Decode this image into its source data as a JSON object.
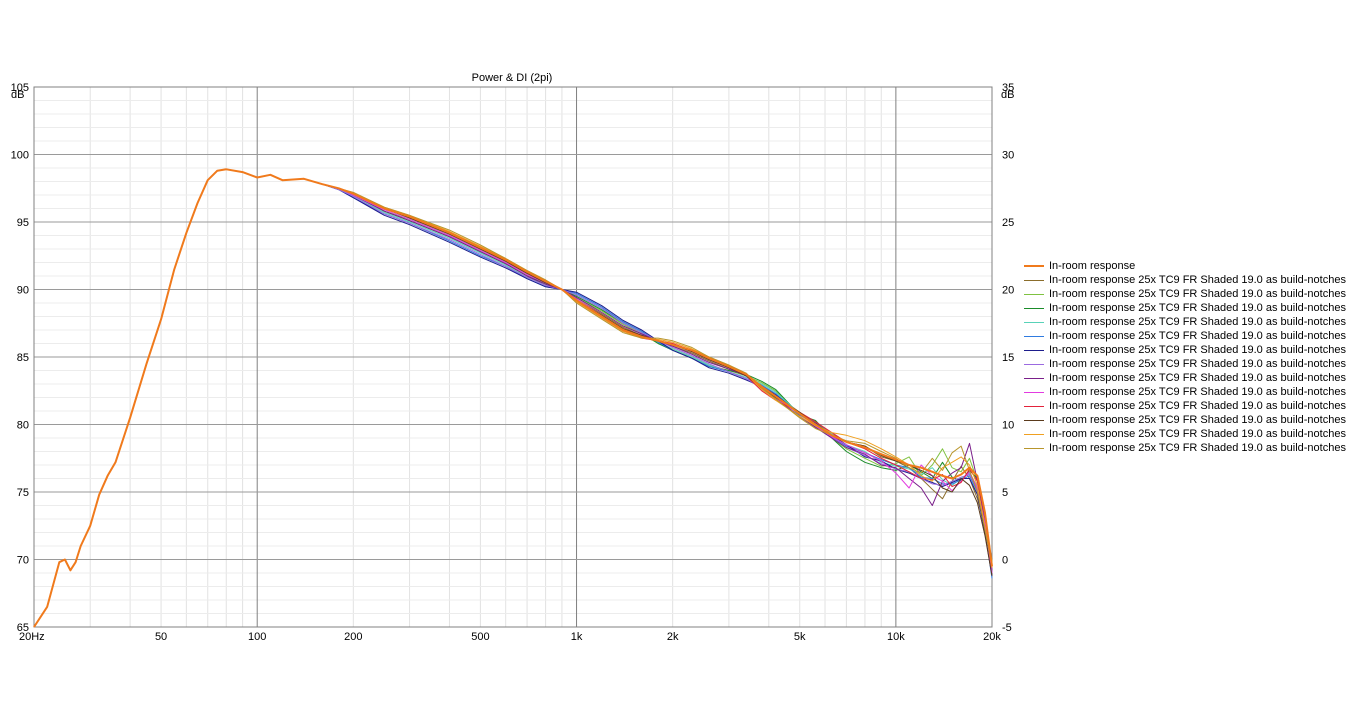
{
  "chart_data": {
    "type": "line",
    "title": "Power & DI (2pi)",
    "xlabel": "",
    "ylabel": "dB",
    "y2label": "dB",
    "x_scale": "log",
    "xlim": [
      20,
      20000
    ],
    "ylim": [
      65,
      105
    ],
    "y2lim": [
      -5,
      35
    ],
    "x_ticks": [
      {
        "value": 20,
        "label": "20Hz"
      },
      {
        "value": 50,
        "label": "50"
      },
      {
        "value": 100,
        "label": "100"
      },
      {
        "value": 200,
        "label": "200"
      },
      {
        "value": 500,
        "label": "500"
      },
      {
        "value": 1000,
        "label": "1k"
      },
      {
        "value": 2000,
        "label": "2k"
      },
      {
        "value": 5000,
        "label": "5k"
      },
      {
        "value": 10000,
        "label": "10k"
      },
      {
        "value": 20000,
        "label": "20k"
      }
    ],
    "y_ticks": [
      105,
      100,
      95,
      90,
      85,
      80,
      75,
      70,
      65
    ],
    "y2_ticks": [
      35,
      30,
      25,
      20,
      15,
      10,
      5,
      0,
      -5
    ],
    "grid": true,
    "legend_position": "right",
    "x": [
      20,
      22,
      24,
      25,
      26,
      27,
      28,
      30,
      32,
      34,
      36,
      40,
      45,
      50,
      55,
      60,
      65,
      70,
      75,
      80,
      90,
      100,
      110,
      120,
      140,
      160,
      180,
      200,
      250,
      300,
      400,
      500,
      600,
      700,
      800,
      900,
      1000,
      1200,
      1400,
      1600,
      1800,
      2000,
      2300,
      2600,
      3000,
      3400,
      3800,
      4200,
      5000,
      5600,
      6300,
      7000,
      8000,
      9000,
      10000,
      11000,
      12000,
      13000,
      14000,
      15000,
      16000,
      17000,
      18000,
      19000,
      20000
    ],
    "series": [
      {
        "name": "In-room response",
        "color": "#f07a1c",
        "values": [
          65.0,
          66.5,
          69.8,
          70.0,
          69.2,
          69.8,
          71.0,
          72.5,
          74.8,
          76.2,
          77.2,
          80.5,
          84.5,
          87.8,
          91.5,
          94.2,
          96.4,
          98.1,
          98.8,
          98.9,
          98.7,
          98.3,
          98.5,
          98.1,
          98.2,
          97.8,
          97.5,
          97.1,
          96.0,
          95.4,
          94.2,
          93.1,
          92.2,
          91.3,
          90.6,
          90.0,
          89.2,
          88.0,
          87.0,
          86.5,
          86.2,
          85.9,
          85.5,
          84.9,
          84.3,
          83.7,
          82.8,
          82.1,
          80.8,
          80.0,
          79.2,
          78.7,
          78.3,
          77.8,
          77.4,
          77.0,
          76.8,
          76.5,
          76.2,
          76.0,
          76.3,
          76.8,
          76.2,
          73.5,
          69.5
        ]
      },
      {
        "name": "In-room response 25x TC9 FR Shaded 19.0 as build-notches",
        "color": "#8b6d2b",
        "values": [
          65.0,
          66.5,
          69.8,
          70.0,
          69.2,
          69.8,
          71.0,
          72.5,
          74.8,
          76.2,
          77.2,
          80.5,
          84.5,
          87.8,
          91.5,
          94.2,
          96.4,
          98.1,
          98.8,
          98.9,
          98.7,
          98.3,
          98.5,
          98.1,
          98.2,
          97.8,
          97.5,
          97.1,
          96.0,
          95.4,
          94.2,
          93.0,
          92.1,
          91.2,
          90.5,
          90.0,
          89.3,
          88.2,
          87.2,
          86.6,
          86.1,
          85.8,
          85.3,
          84.7,
          84.1,
          83.6,
          82.9,
          82.2,
          80.9,
          80.2,
          79.3,
          78.7,
          78.4,
          77.6,
          77.3,
          76.8,
          76.0,
          75.2,
          74.5,
          75.8,
          76.9,
          76.0,
          74.5,
          72.5,
          70.0
        ]
      },
      {
        "name": "In-room response 25x TC9 FR Shaded 19.0 as build-notches",
        "color": "#7fc241",
        "values": [
          65.0,
          66.5,
          69.8,
          70.0,
          69.2,
          69.8,
          71.0,
          72.5,
          74.8,
          76.2,
          77.2,
          80.5,
          84.5,
          87.8,
          91.5,
          94.2,
          96.4,
          98.1,
          98.8,
          98.9,
          98.7,
          98.3,
          98.5,
          98.1,
          98.2,
          97.8,
          97.5,
          97.0,
          95.8,
          95.2,
          94.0,
          92.9,
          92.0,
          91.1,
          90.4,
          90.0,
          89.4,
          88.4,
          87.4,
          86.7,
          86.0,
          85.6,
          85.0,
          84.4,
          84.0,
          83.6,
          83.1,
          82.5,
          80.6,
          79.8,
          79.0,
          78.2,
          77.5,
          76.9,
          77.1,
          77.6,
          76.2,
          77.0,
          78.2,
          76.8,
          76.5,
          77.5,
          75.8,
          73.0,
          69.8
        ]
      },
      {
        "name": "In-room response 25x TC9 FR Shaded 19.0 as build-notches",
        "color": "#1a8c2a",
        "values": [
          65.0,
          66.5,
          69.8,
          70.0,
          69.2,
          69.8,
          71.0,
          72.5,
          74.8,
          76.2,
          77.2,
          80.5,
          84.5,
          87.8,
          91.5,
          94.2,
          96.4,
          98.1,
          98.8,
          98.9,
          98.7,
          98.3,
          98.5,
          98.1,
          98.2,
          97.8,
          97.5,
          97.0,
          95.8,
          95.1,
          93.9,
          92.8,
          91.9,
          91.0,
          90.3,
          90.0,
          89.5,
          88.5,
          87.5,
          86.8,
          86.0,
          85.5,
          84.9,
          84.3,
          84.0,
          83.7,
          83.2,
          82.6,
          80.7,
          80.3,
          79.0,
          78.0,
          77.2,
          76.8,
          76.6,
          77.0,
          76.5,
          76.0,
          77.2,
          76.1,
          75.8,
          76.6,
          76.0,
          73.4,
          69.6
        ]
      },
      {
        "name": "In-room response 25x TC9 FR Shaded 19.0 as build-notches",
        "color": "#58d2b8",
        "values": [
          65.0,
          66.5,
          69.8,
          70.0,
          69.2,
          69.8,
          71.0,
          72.5,
          74.8,
          76.2,
          77.2,
          80.5,
          84.5,
          87.8,
          91.5,
          94.2,
          96.4,
          98.1,
          98.8,
          98.9,
          98.7,
          98.3,
          98.5,
          98.1,
          98.2,
          97.8,
          97.5,
          96.9,
          95.7,
          95.0,
          93.8,
          92.7,
          91.8,
          90.9,
          90.3,
          90.0,
          89.6,
          88.6,
          87.6,
          86.9,
          86.1,
          85.6,
          85.0,
          84.4,
          83.9,
          83.5,
          83.0,
          82.4,
          80.8,
          80.1,
          79.3,
          78.5,
          78.0,
          77.2,
          76.9,
          76.7,
          76.3,
          76.8,
          75.9,
          75.5,
          76.0,
          76.4,
          75.4,
          72.8,
          69.2
        ]
      },
      {
        "name": "In-room response 25x TC9 FR Shaded 19.0 as build-notches",
        "color": "#2f7be0",
        "values": [
          65.0,
          66.5,
          69.8,
          70.0,
          69.2,
          69.8,
          71.0,
          72.5,
          74.8,
          76.2,
          77.2,
          80.5,
          84.5,
          87.8,
          91.5,
          94.2,
          96.4,
          98.1,
          98.8,
          98.9,
          98.7,
          98.3,
          98.5,
          98.1,
          98.2,
          97.8,
          97.4,
          96.8,
          95.6,
          94.9,
          93.6,
          92.5,
          91.7,
          90.8,
          90.2,
          90.0,
          89.7,
          88.7,
          87.6,
          86.9,
          86.1,
          85.5,
          84.9,
          84.3,
          83.9,
          83.4,
          82.9,
          82.3,
          80.7,
          80.0,
          79.1,
          78.4,
          77.9,
          77.4,
          77.0,
          76.8,
          76.1,
          76.0,
          75.6,
          75.6,
          75.9,
          76.2,
          75.0,
          72.2,
          68.6
        ]
      },
      {
        "name": "In-room response 25x TC9 FR Shaded 19.0 as build-notches",
        "color": "#1d1d8c",
        "values": [
          65.0,
          66.5,
          69.8,
          70.0,
          69.2,
          69.8,
          71.0,
          72.5,
          74.8,
          76.2,
          77.2,
          80.5,
          84.5,
          87.8,
          91.5,
          94.2,
          96.4,
          98.1,
          98.8,
          98.9,
          98.7,
          98.3,
          98.5,
          98.1,
          98.2,
          97.8,
          97.4,
          96.8,
          95.5,
          94.8,
          93.5,
          92.4,
          91.6,
          90.8,
          90.2,
          90.0,
          89.8,
          88.8,
          87.7,
          87.0,
          86.2,
          85.5,
          84.9,
          84.2,
          83.8,
          83.3,
          82.8,
          82.2,
          80.8,
          80.1,
          79.2,
          78.5,
          77.6,
          77.3,
          76.7,
          76.4,
          76.0,
          75.7,
          75.4,
          75.7,
          76.0,
          76.0,
          74.8,
          72.0,
          68.8
        ]
      },
      {
        "name": "In-room response 25x TC9 FR Shaded 19.0 as build-notches",
        "color": "#9b6ae0",
        "values": [
          65.0,
          66.5,
          69.8,
          70.0,
          69.2,
          69.8,
          71.0,
          72.5,
          74.8,
          76.2,
          77.2,
          80.5,
          84.5,
          87.8,
          91.5,
          94.2,
          96.4,
          98.1,
          98.8,
          98.9,
          98.7,
          98.3,
          98.5,
          98.1,
          98.2,
          97.8,
          97.4,
          96.9,
          95.6,
          94.9,
          93.7,
          92.6,
          91.7,
          90.9,
          90.3,
          90.0,
          89.6,
          88.6,
          87.5,
          86.8,
          86.2,
          85.7,
          85.1,
          84.5,
          83.9,
          83.4,
          82.7,
          82.0,
          80.6,
          79.8,
          79.0,
          78.3,
          77.7,
          77.1,
          76.7,
          76.5,
          76.0,
          75.6,
          75.5,
          75.8,
          76.1,
          76.3,
          75.2,
          72.6,
          69.0
        ]
      },
      {
        "name": "In-room response 25x TC9 FR Shaded 19.0 as build-notches",
        "color": "#7a1f8a",
        "values": [
          65.0,
          66.5,
          69.8,
          70.0,
          69.2,
          69.8,
          71.0,
          72.5,
          74.8,
          76.2,
          77.2,
          80.5,
          84.5,
          87.8,
          91.5,
          94.2,
          96.4,
          98.1,
          98.8,
          98.9,
          98.7,
          98.3,
          98.5,
          98.1,
          98.2,
          97.8,
          97.5,
          97.0,
          95.8,
          95.1,
          93.9,
          92.8,
          91.9,
          91.0,
          90.4,
          90.0,
          89.4,
          88.3,
          87.3,
          86.7,
          86.2,
          85.8,
          85.2,
          84.6,
          84.1,
          83.6,
          82.7,
          81.9,
          80.6,
          79.8,
          79.0,
          78.3,
          77.8,
          77.0,
          76.8,
          76.0,
          75.3,
          74.0,
          75.8,
          76.4,
          76.8,
          78.6,
          75.8,
          72.8,
          69.2
        ]
      },
      {
        "name": "In-room response 25x TC9 FR Shaded 19.0 as build-notches",
        "color": "#e23be0",
        "values": [
          65.0,
          66.5,
          69.8,
          70.0,
          69.2,
          69.8,
          71.0,
          72.5,
          74.8,
          76.2,
          77.2,
          80.5,
          84.5,
          87.8,
          91.5,
          94.2,
          96.4,
          98.1,
          98.8,
          98.9,
          98.7,
          98.3,
          98.5,
          98.1,
          98.2,
          97.8,
          97.5,
          97.0,
          95.9,
          95.2,
          94.0,
          92.9,
          92.0,
          91.1,
          90.5,
          90.0,
          89.3,
          88.1,
          87.1,
          86.6,
          86.2,
          85.9,
          85.4,
          84.8,
          84.2,
          83.6,
          82.6,
          81.9,
          80.8,
          79.9,
          79.1,
          78.5,
          77.9,
          77.3,
          76.4,
          75.3,
          77.0,
          76.2,
          75.8,
          75.1,
          75.8,
          76.5,
          75.3,
          72.7,
          69.0
        ]
      },
      {
        "name": "In-room response 25x TC9 FR Shaded 19.0 as build-notches",
        "color": "#e3223b",
        "values": [
          65.0,
          66.5,
          69.8,
          70.0,
          69.2,
          69.8,
          71.0,
          72.5,
          74.8,
          76.2,
          77.2,
          80.5,
          84.5,
          87.8,
          91.5,
          94.2,
          96.4,
          98.1,
          98.8,
          98.9,
          98.7,
          98.3,
          98.5,
          98.1,
          98.2,
          97.8,
          97.5,
          97.1,
          96.0,
          95.4,
          94.2,
          93.1,
          92.2,
          91.3,
          90.6,
          90.0,
          89.1,
          87.9,
          86.9,
          86.4,
          86.2,
          86.0,
          85.5,
          84.9,
          84.3,
          83.6,
          82.5,
          81.8,
          80.9,
          80.2,
          79.4,
          78.7,
          78.2,
          77.5,
          77.0,
          76.5,
          76.0,
          75.9,
          76.3,
          75.4,
          75.7,
          76.7,
          75.8,
          73.3,
          69.4
        ]
      },
      {
        "name": "In-room response 25x TC9 FR Shaded 19.0 as build-notches",
        "color": "#5a3a1c",
        "values": [
          65.0,
          66.5,
          69.8,
          70.0,
          69.2,
          69.8,
          71.0,
          72.5,
          74.8,
          76.2,
          77.2,
          80.5,
          84.5,
          87.8,
          91.5,
          94.2,
          96.4,
          98.1,
          98.8,
          98.9,
          98.7,
          98.3,
          98.5,
          98.1,
          98.2,
          97.8,
          97.5,
          97.1,
          96.0,
          95.3,
          94.1,
          93.0,
          92.1,
          91.2,
          90.5,
          90.0,
          89.2,
          88.1,
          87.1,
          86.6,
          86.2,
          85.9,
          85.4,
          84.8,
          84.2,
          83.6,
          82.7,
          82.0,
          80.9,
          80.0,
          79.2,
          78.7,
          78.4,
          77.7,
          77.3,
          77.0,
          76.6,
          76.2,
          75.3,
          75.0,
          76.0,
          75.5,
          74.2,
          71.8,
          68.8
        ]
      },
      {
        "name": "In-room response 25x TC9 FR Shaded 19.0 as build-notches",
        "color": "#f0a020",
        "values": [
          65.0,
          66.5,
          69.8,
          70.0,
          69.2,
          69.8,
          71.0,
          72.5,
          74.8,
          76.2,
          77.2,
          80.5,
          84.5,
          87.8,
          91.5,
          94.2,
          96.4,
          98.1,
          98.8,
          98.9,
          98.7,
          98.3,
          98.5,
          98.1,
          98.2,
          97.8,
          97.5,
          97.1,
          96.1,
          95.5,
          94.3,
          93.2,
          92.3,
          91.4,
          90.7,
          90.0,
          89.1,
          87.9,
          86.9,
          86.4,
          86.3,
          86.1,
          85.6,
          85.0,
          84.4,
          83.7,
          82.6,
          81.8,
          80.6,
          79.9,
          79.4,
          79.2,
          78.8,
          78.2,
          77.6,
          77.0,
          76.2,
          75.8,
          76.8,
          77.2,
          77.6,
          77.0,
          75.5,
          72.4,
          69.4
        ]
      },
      {
        "name": "In-room response 25x TC9 FR Shaded 19.0 as build-notches",
        "color": "#b8962c",
        "values": [
          65.0,
          66.5,
          69.8,
          70.0,
          69.2,
          69.8,
          71.0,
          72.5,
          74.8,
          76.2,
          77.2,
          80.5,
          84.5,
          87.8,
          91.5,
          94.2,
          96.4,
          98.1,
          98.8,
          98.9,
          98.7,
          98.3,
          98.5,
          98.1,
          98.2,
          97.8,
          97.5,
          97.2,
          96.1,
          95.5,
          94.4,
          93.3,
          92.3,
          91.4,
          90.7,
          90.0,
          89.0,
          87.8,
          86.8,
          86.4,
          86.4,
          86.2,
          85.7,
          85.0,
          84.4,
          83.8,
          82.7,
          81.9,
          80.5,
          79.7,
          79.2,
          78.8,
          78.6,
          78.0,
          77.5,
          76.8,
          76.4,
          77.5,
          76.6,
          77.9,
          78.4,
          76.6,
          75.0,
          72.2,
          69.6
        ]
      }
    ]
  }
}
